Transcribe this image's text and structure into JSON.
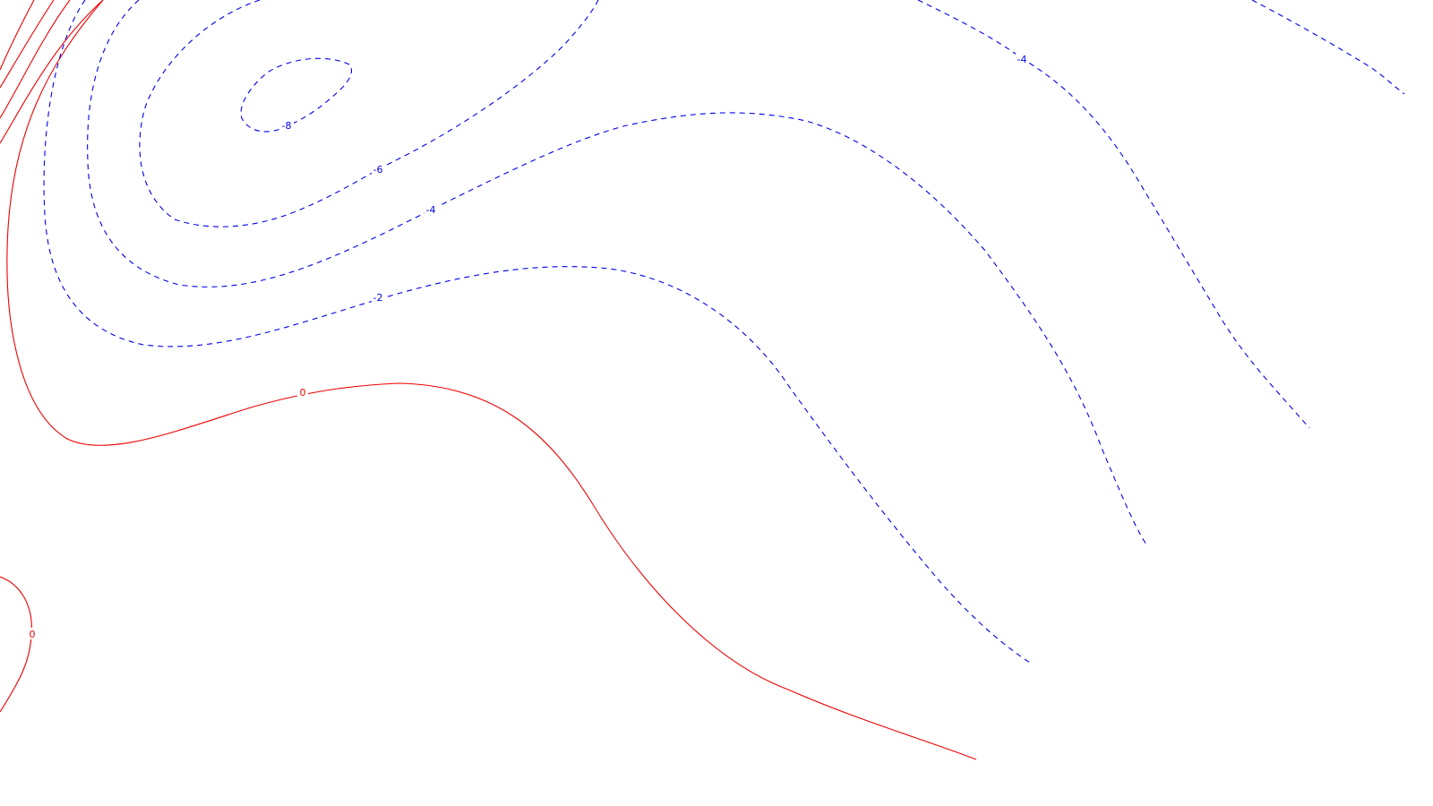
{
  "colors": {
    "negative": "#0000ee",
    "zero": "#ee0000",
    "background": "#ffffff"
  },
  "contours": {
    "neg8": {
      "level": -8,
      "label": "-8"
    },
    "neg6": {
      "level": -6,
      "label": "-6"
    },
    "neg4": {
      "level": -4,
      "label": "-4"
    },
    "neg2": {
      "level": -2,
      "label": "-2"
    },
    "neg4_right": {
      "level": -4,
      "label": "-4"
    },
    "zero_main": {
      "level": 0,
      "label": "0"
    },
    "zero_left": {
      "level": 0,
      "label": "0"
    }
  }
}
